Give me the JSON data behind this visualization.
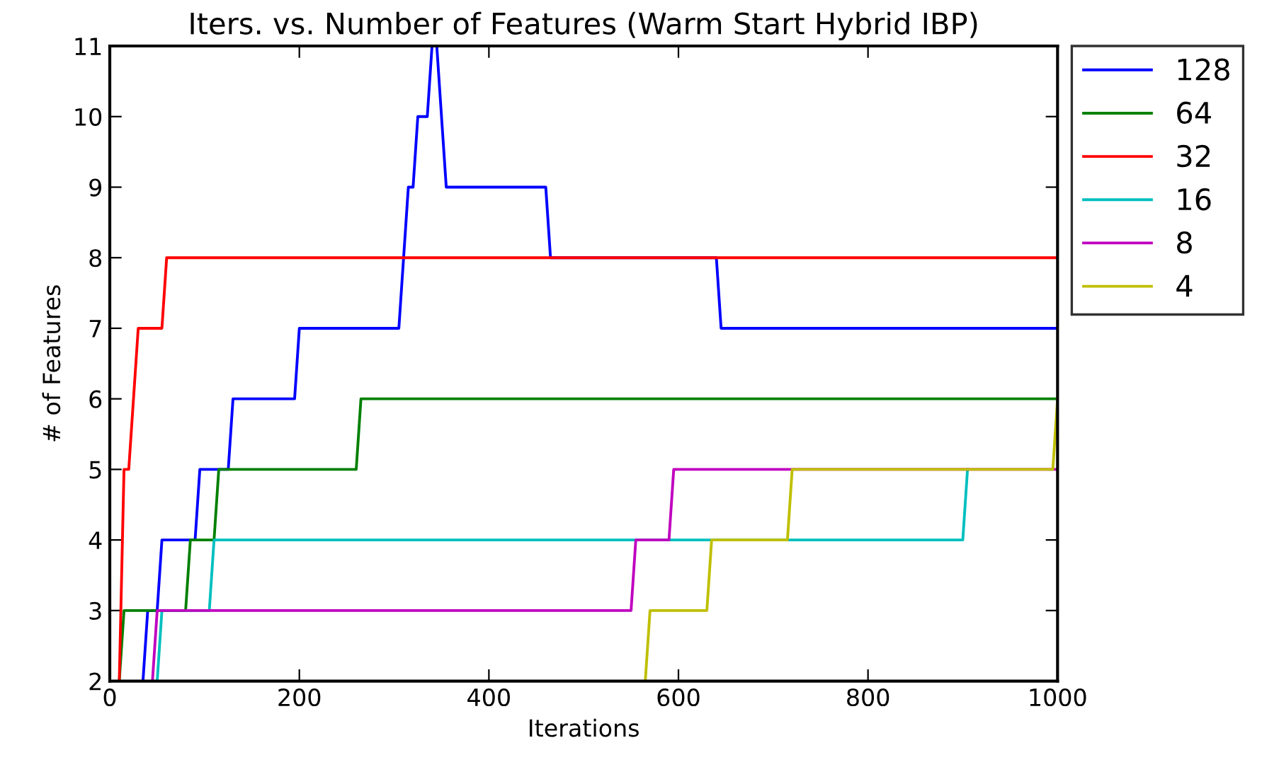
{
  "chart_data": {
    "type": "line",
    "title": "Iters. vs. Number of Features (Warm Start Hybrid IBP)",
    "xlabel": "Iterations",
    "ylabel": "# of Features",
    "xlim": [
      0,
      1000
    ],
    "ylim": [
      2,
      11
    ],
    "xticks": [
      0,
      200,
      400,
      600,
      800,
      1000
    ],
    "yticks": [
      2,
      3,
      4,
      5,
      6,
      7,
      8,
      9,
      10,
      11
    ],
    "grid": false,
    "legend": "right",
    "marker": "none",
    "line_style": "solid",
    "series": [
      {
        "name": "128",
        "color": "#0000ff",
        "x": [
          35,
          40,
          50,
          55,
          90,
          95,
          125,
          130,
          195,
          200,
          305,
          315,
          320,
          325,
          335,
          340,
          345,
          355,
          460,
          465,
          640,
          645,
          1000
        ],
        "values": [
          2,
          3,
          3,
          4,
          4,
          5,
          5,
          6,
          6,
          7,
          7,
          9,
          9,
          10,
          10,
          11,
          11,
          9,
          9,
          8,
          8,
          7,
          7
        ]
      },
      {
        "name": "64",
        "color": "#008000",
        "x": [
          10,
          15,
          80,
          85,
          110,
          115,
          260,
          265,
          1000
        ],
        "values": [
          2,
          3,
          3,
          4,
          4,
          5,
          5,
          6,
          6
        ]
      },
      {
        "name": "32",
        "color": "#ff0000",
        "x": [
          10,
          15,
          20,
          30,
          55,
          60,
          1000
        ],
        "values": [
          2,
          5,
          5,
          7,
          7,
          8,
          8
        ]
      },
      {
        "name": "16",
        "color": "#00bfbf",
        "x": [
          50,
          55,
          105,
          110,
          900,
          905
        ],
        "values": [
          2,
          3,
          3,
          4,
          4,
          5
        ]
      },
      {
        "name": "8",
        "color": "#bf00bf",
        "x": [
          45,
          50,
          550,
          555,
          590,
          595,
          1000
        ],
        "values": [
          2,
          3,
          3,
          4,
          4,
          5,
          5
        ]
      },
      {
        "name": "4",
        "color": "#bfbf00",
        "x": [
          565,
          570,
          630,
          635,
          715,
          720,
          995,
          1000
        ],
        "values": [
          2,
          3,
          3,
          4,
          4,
          5,
          5,
          6
        ]
      }
    ]
  }
}
